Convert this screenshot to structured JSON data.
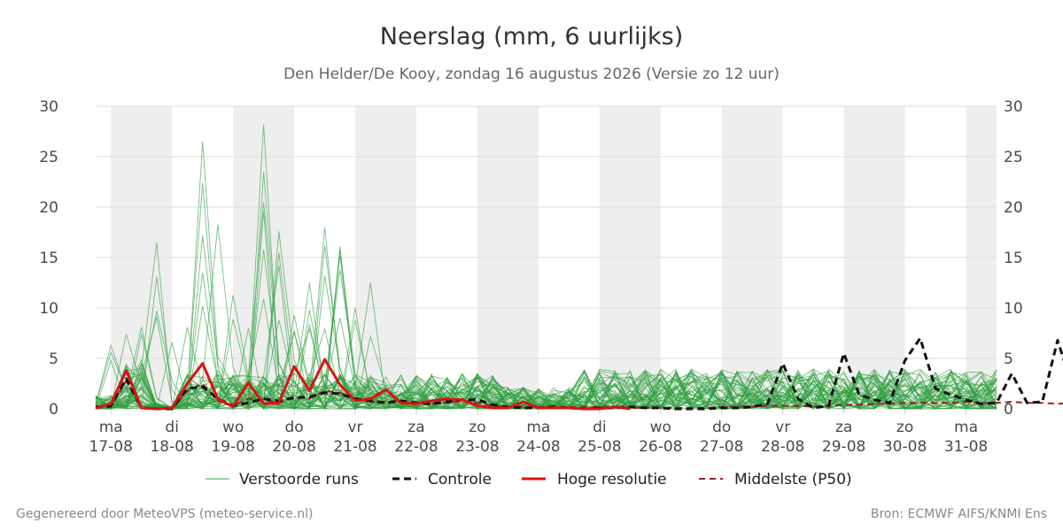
{
  "chart_data": {
    "type": "line",
    "title": "Neerslag (mm, 6 uurlijks)",
    "subtitle": "Den Helder/De Kooy, zondag 16 augustus 2026 (Versie zo 12 uur)",
    "ylim": [
      0,
      30
    ],
    "y_ticks": [
      0,
      5,
      10,
      15,
      20,
      25,
      30
    ],
    "x_range_days": [
      -0.25,
      14.5
    ],
    "x_ticks": [
      {
        "day": "ma",
        "date": "17-08"
      },
      {
        "day": "di",
        "date": "18-08"
      },
      {
        "day": "wo",
        "date": "19-08"
      },
      {
        "day": "do",
        "date": "20-08"
      },
      {
        "day": "vr",
        "date": "21-08"
      },
      {
        "day": "za",
        "date": "22-08"
      },
      {
        "day": "zo",
        "date": "23-08"
      },
      {
        "day": "ma",
        "date": "24-08"
      },
      {
        "day": "di",
        "date": "25-08"
      },
      {
        "day": "wo",
        "date": "26-08"
      },
      {
        "day": "do",
        "date": "27-08"
      },
      {
        "day": "vr",
        "date": "28-08"
      },
      {
        "day": "za",
        "date": "29-08"
      },
      {
        "day": "zo",
        "date": "30-08"
      },
      {
        "day": "ma",
        "date": "31-08"
      }
    ],
    "shaded_days": [
      0,
      2,
      4,
      6,
      8,
      10,
      12,
      14
    ],
    "grid": true,
    "legend_position": "bottom",
    "series": [
      {
        "name": "Controle",
        "color": "#111111",
        "style": "dashed",
        "values": [
          0.2,
          0.3,
          3.0,
          0.1,
          0.0,
          0.0,
          2.0,
          2.2,
          1.0,
          0.3,
          0.6,
          1.0,
          0.8,
          1.1,
          1.2,
          1.6,
          1.5,
          1.0,
          0.8,
          0.6,
          0.8,
          0.6,
          0.5,
          0.7,
          0.9,
          0.9,
          0.4,
          0.2,
          0.1,
          0.1,
          0.2,
          0.1,
          0.0,
          0.1,
          0.1,
          0.2,
          0.1,
          0.1,
          0.0,
          0.0,
          0.0,
          0.1,
          0.1,
          0.2,
          0.5,
          4.5,
          1.0,
          0.1,
          0.3,
          5.5,
          1.4,
          0.9,
          0.6,
          4.8,
          7.0,
          2.0,
          1.4,
          0.9,
          0.5,
          0.6,
          3.5,
          0.6,
          0.7,
          6.8,
          2.0
        ]
      },
      {
        "name": "Hoge resolutie",
        "color": "#dd1111",
        "style": "solid",
        "values": [
          0.1,
          0.5,
          3.8,
          0.1,
          0.0,
          0.1,
          2.5,
          4.5,
          1.0,
          0.2,
          2.6,
          0.5,
          0.6,
          4.2,
          1.8,
          4.9,
          2.4,
          0.8,
          1.0,
          1.9,
          0.6,
          0.5,
          0.8,
          1.0,
          0.9,
          0.3,
          0.1,
          0.1,
          0.7,
          0.1,
          0.1,
          0.1,
          0.0,
          0.0,
          0.2,
          0.0
        ]
      },
      {
        "name": "Middelste (P50)",
        "color": "#992222",
        "style": "dashed",
        "values": [
          0.1,
          0.2,
          2.8,
          0.1,
          0.0,
          0.0,
          1.8,
          2.5,
          0.8,
          0.3,
          1.0,
          0.9,
          0.6,
          1.2,
          1.0,
          1.8,
          1.6,
          1.0,
          0.7,
          0.7,
          0.8,
          0.6,
          0.5,
          0.6,
          0.8,
          0.6,
          0.3,
          0.2,
          0.2,
          0.2,
          0.1,
          0.2,
          0.2,
          0.2,
          0.2,
          0.1,
          0.1,
          0.1,
          0.1,
          0.1,
          0.1,
          0.2,
          0.2,
          0.2,
          0.3,
          0.3,
          0.3,
          0.2,
          0.3,
          0.4,
          0.4,
          0.5,
          0.5,
          0.6,
          0.6,
          0.6,
          0.6,
          0.7,
          0.6,
          0.6,
          0.7,
          0.6,
          0.6,
          0.5,
          0.6
        ]
      }
    ],
    "ensemble": {
      "name": "Verstoorde runs",
      "color": "#2e9e3e",
      "member_count": 50,
      "step_days": 0.25,
      "peaks": [
        {
          "t": 0.75,
          "v": 6.3
        },
        {
          "t": 0.75,
          "v": 5.6
        },
        {
          "t": 0.75,
          "v": 4.8
        },
        {
          "t": 2.25,
          "v": 7.4
        },
        {
          "t": 2.5,
          "v": 8.1
        },
        {
          "t": 3.0,
          "v": 7.4
        },
        {
          "t": 3.5,
          "v": 9.1
        },
        {
          "t": 3.75,
          "v": 13.1
        },
        {
          "t": 4.0,
          "v": 16.5
        },
        {
          "t": 4.25,
          "v": 9.7
        },
        {
          "t": 5.0,
          "v": 6.6
        },
        {
          "t": 5.5,
          "v": 8.1
        },
        {
          "t": 6.75,
          "v": 17.2
        },
        {
          "t": 7.0,
          "v": 10.2
        },
        {
          "t": 7.25,
          "v": 26.5
        },
        {
          "t": 7.25,
          "v": 22.4
        },
        {
          "t": 7.5,
          "v": 18.3
        },
        {
          "t": 7.25,
          "v": 13.5
        },
        {
          "t": 8.25,
          "v": 3.8
        },
        {
          "t": 9.0,
          "v": 11.3
        },
        {
          "t": 9.25,
          "v": 8.9
        },
        {
          "t": 9.75,
          "v": 8.0
        },
        {
          "t": 10.5,
          "v": 28.2
        },
        {
          "t": 10.5,
          "v": 20.5
        },
        {
          "t": 10.75,
          "v": 23.5
        },
        {
          "t": 10.75,
          "v": 19.6
        },
        {
          "t": 11.0,
          "v": 15.8
        },
        {
          "t": 11.0,
          "v": 10.9
        },
        {
          "t": 11.5,
          "v": 15.5
        },
        {
          "t": 11.5,
          "v": 8.8
        },
        {
          "t": 12.0,
          "v": 14.2
        },
        {
          "t": 12.25,
          "v": 17.6
        },
        {
          "t": 12.5,
          "v": 7.6
        },
        {
          "t": 13.0,
          "v": 7.8
        },
        {
          "t": 13.25,
          "v": 9.3
        },
        {
          "t": 13.5,
          "v": 9.8
        },
        {
          "t": 13.75,
          "v": 12.5
        },
        {
          "t": 14.0,
          "v": 7.9
        },
        {
          "t": 14.25,
          "v": 8.4
        },
        {
          "t": 14.5,
          "v": 7.9
        },
        {
          "t": 15.0,
          "v": 13.2
        },
        {
          "t": 15.25,
          "v": 18.0
        },
        {
          "t": 15.25,
          "v": 16.2
        },
        {
          "t": 15.5,
          "v": 9.0
        },
        {
          "t": 15.75,
          "v": 15.2
        },
        {
          "t": 16.0,
          "v": 16.1
        },
        {
          "t": 16.0,
          "v": 13.8
        },
        {
          "t": 16.25,
          "v": 15.8
        },
        {
          "t": 16.75,
          "v": 8.8
        },
        {
          "t": 17.25,
          "v": 10.0
        },
        {
          "t": 17.5,
          "v": 12.5
        },
        {
          "t": 17.75,
          "v": 7.2
        }
      ]
    }
  },
  "legend": {
    "ensemble_label": "Verstoorde runs",
    "control_label": "Controle",
    "highres_label": "Hoge resolutie",
    "median_label": "Middelste (P50)"
  },
  "footer": {
    "left": "Gegenereerd door MeteoVPS (meteo-service.nl)",
    "right": "Bron: ECMWF AIFS/KNMI Ens"
  }
}
